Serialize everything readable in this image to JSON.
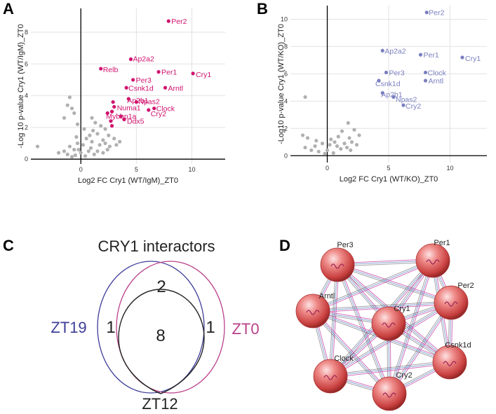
{
  "chart_data": [
    {
      "panel": "A",
      "type": "scatter",
      "xlabel": "Log2 FC Cry1 (WT/IgM)_ZT0",
      "ylabel": "-Log 10 p-value Cry1 (WT/IgM)_ZT0",
      "xlim": [
        -4.5,
        13
      ],
      "ylim": [
        -0.3,
        9.5
      ],
      "xticks": [
        0,
        5,
        10
      ],
      "yticks": [
        0,
        2,
        4,
        6,
        8
      ],
      "x_tick_labels": [
        "0",
        "5",
        "10"
      ],
      "y_tick_labels": [
        "0",
        "2",
        "4",
        "6",
        "8"
      ],
      "highlight_color": "#d0126e",
      "background_color": "#b0b0b0",
      "labeled_points": [
        {
          "label": "Per2",
          "x": 7.9,
          "y": 8.7
        },
        {
          "label": "Ap2a2",
          "x": 4.5,
          "y": 6.3
        },
        {
          "label": "Relb",
          "x": 1.8,
          "y": 5.7
        },
        {
          "label": "Per1",
          "x": 7.0,
          "y": 5.5
        },
        {
          "label": "Cry1",
          "x": 10.1,
          "y": 5.4
        },
        {
          "label": "Per3",
          "x": 4.7,
          "y": 5.0
        },
        {
          "label": "Csnk1d",
          "x": 4.1,
          "y": 4.5
        },
        {
          "label": "Arntl",
          "x": 7.6,
          "y": 4.5
        },
        {
          "label": "Ap2b1",
          "x": 4.3,
          "y": 3.8
        },
        {
          "label": "Npas2",
          "x": 5.0,
          "y": 3.6
        },
        {
          "label": "Clock",
          "x": 6.6,
          "y": 3.2
        },
        {
          "label": "Numa1",
          "x": 3.0,
          "y": 3.3
        },
        {
          "label": "Cry2",
          "x": 6.1,
          "y": 3.1
        },
        {
          "label": "Mybbp1a",
          "x": 2.4,
          "y": 2.9
        },
        {
          "label": "Ddx5",
          "x": 3.9,
          "y": 2.5
        }
      ],
      "unlabeled_highlight": [
        {
          "x": 2.9,
          "y": 3.6
        },
        {
          "x": 2.8,
          "y": 3.0
        },
        {
          "x": 2.7,
          "y": 2.4
        },
        {
          "x": 2.8,
          "y": 2.1
        },
        {
          "x": 3.6,
          "y": 2.7
        }
      ],
      "background_points": [
        {
          "x": -1.0,
          "y": 3.9
        },
        {
          "x": -1.2,
          "y": 3.4
        },
        {
          "x": -0.8,
          "y": 3.2
        },
        {
          "x": -1.5,
          "y": 2.6
        },
        {
          "x": -0.6,
          "y": 2.9
        },
        {
          "x": -0.3,
          "y": 2.2
        },
        {
          "x": 0.3,
          "y": 1.9
        },
        {
          "x": 1.0,
          "y": 2.6
        },
        {
          "x": 1.3,
          "y": 2.3
        },
        {
          "x": 1.8,
          "y": 2.1
        },
        {
          "x": 2.2,
          "y": 1.9
        },
        {
          "x": 1.5,
          "y": 1.6
        },
        {
          "x": 2.5,
          "y": 1.5
        },
        {
          "x": 2.0,
          "y": 1.2
        },
        {
          "x": 3.0,
          "y": 1.3
        },
        {
          "x": 3.2,
          "y": 0.9
        },
        {
          "x": 2.6,
          "y": 0.8
        },
        {
          "x": 1.0,
          "y": 1.1
        },
        {
          "x": 0.5,
          "y": 1.3
        },
        {
          "x": 0.9,
          "y": 0.7
        },
        {
          "x": 1.5,
          "y": 0.5
        },
        {
          "x": 0.2,
          "y": 0.9
        },
        {
          "x": -0.3,
          "y": 1.0
        },
        {
          "x": -0.6,
          "y": 0.6
        },
        {
          "x": -1.0,
          "y": 0.8
        },
        {
          "x": -1.5,
          "y": 0.5
        },
        {
          "x": -2.0,
          "y": 0.4
        },
        {
          "x": -1.2,
          "y": 0.3
        },
        {
          "x": -0.5,
          "y": 0.25
        },
        {
          "x": 0.0,
          "y": 0.4
        },
        {
          "x": 0.4,
          "y": 0.2
        },
        {
          "x": 1.2,
          "y": 0.3
        },
        {
          "x": 2.0,
          "y": 0.4
        },
        {
          "x": 2.4,
          "y": 0.6
        },
        {
          "x": -0.2,
          "y": 0.6
        },
        {
          "x": 0.7,
          "y": 0.5
        },
        {
          "x": -0.8,
          "y": 0.15
        },
        {
          "x": -3.9,
          "y": 0.8
        },
        {
          "x": 1.7,
          "y": 0.9
        },
        {
          "x": 2.2,
          "y": 1.0
        },
        {
          "x": 0.8,
          "y": 1.5
        },
        {
          "x": 3.5,
          "y": 1.1
        },
        {
          "x": 1.1,
          "y": 1.8
        },
        {
          "x": -0.4,
          "y": 1.4
        }
      ]
    },
    {
      "panel": "B",
      "type": "scatter",
      "xlabel": "Log2 FC Cry1 (WT/KO)_ZT0",
      "ylabel": "-Log10  p-value Cry1 (WT/KO)_ZT0",
      "xlim": [
        -3,
        13
      ],
      "ylim": [
        -0.5,
        11
      ],
      "xticks": [
        0,
        5,
        10
      ],
      "yticks": [
        0,
        2,
        4,
        6,
        8,
        10
      ],
      "x_tick_labels": [
        "0",
        "5",
        "10"
      ],
      "y_tick_labels": [
        "0",
        "2",
        "4",
        "6",
        "8",
        "10"
      ],
      "highlight_color": "#7a7fc0",
      "background_color": "#b0b0b0",
      "labeled_points": [
        {
          "label": "Per2",
          "x": 8.1,
          "y": 10.5
        },
        {
          "label": "Ap2a2",
          "x": 4.5,
          "y": 7.7
        },
        {
          "label": "Per1",
          "x": 7.6,
          "y": 7.4
        },
        {
          "label": "Cry1",
          "x": 11.0,
          "y": 7.2
        },
        {
          "label": "Per3",
          "x": 4.8,
          "y": 6.1
        },
        {
          "label": "Clock",
          "x": 8.0,
          "y": 6.1
        },
        {
          "label": "Csnk1d",
          "x": 4.2,
          "y": 5.5
        },
        {
          "label": "Arntl",
          "x": 8.0,
          "y": 5.5
        },
        {
          "label": "Ap2b1",
          "x": 4.5,
          "y": 4.6
        },
        {
          "label": "Npas2",
          "x": 5.4,
          "y": 4.3
        },
        {
          "label": "Cry2",
          "x": 6.2,
          "y": 3.7
        }
      ],
      "unlabeled_highlight": [],
      "background_points": [
        {
          "x": -1.8,
          "y": 4.3
        },
        {
          "x": 1.7,
          "y": 2.4
        },
        {
          "x": 2.2,
          "y": 1.9
        },
        {
          "x": 1.2,
          "y": 1.8
        },
        {
          "x": 2.6,
          "y": 1.5
        },
        {
          "x": 1.8,
          "y": 1.3
        },
        {
          "x": 0.9,
          "y": 1.4
        },
        {
          "x": 2.0,
          "y": 1.0
        },
        {
          "x": 1.4,
          "y": 0.9
        },
        {
          "x": 0.6,
          "y": 1.0
        },
        {
          "x": 0.2,
          "y": 0.8
        },
        {
          "x": -0.4,
          "y": 0.9
        },
        {
          "x": -1.0,
          "y": 0.7
        },
        {
          "x": -1.6,
          "y": 1.3
        },
        {
          "x": -2.0,
          "y": 1.5
        },
        {
          "x": -1.3,
          "y": 0.4
        },
        {
          "x": -0.7,
          "y": 0.3
        },
        {
          "x": 0.0,
          "y": 0.4
        },
        {
          "x": 0.5,
          "y": 0.2
        },
        {
          "x": 1.1,
          "y": 0.5
        },
        {
          "x": 1.6,
          "y": 0.6
        },
        {
          "x": -0.2,
          "y": 0.15
        },
        {
          "x": -1.8,
          "y": 0.6
        },
        {
          "x": 2.4,
          "y": 0.8
        },
        {
          "x": 0.8,
          "y": 0.7
        },
        {
          "x": -0.9,
          "y": 1.1
        },
        {
          "x": 1.9,
          "y": 0.4
        },
        {
          "x": 0.3,
          "y": 1.2
        }
      ]
    }
  ],
  "panels": {
    "a_letter": "A",
    "b_letter": "B",
    "c_letter": "C",
    "d_letter": "D"
  },
  "venn": {
    "title": "CRY1 interactors",
    "zt19_label": "ZT19",
    "zt0_label": "ZT0",
    "zt12_label": "ZT12",
    "zt19_only": "1",
    "zt0_only": "1",
    "zt19_zt0": "2",
    "all_three": "8",
    "zt19_color": "#3d3d99",
    "zt0_color": "#b9408a",
    "zt12_color": "#222222"
  },
  "network": {
    "nodes": [
      {
        "id": "Per3",
        "label": "Per3"
      },
      {
        "id": "Per1",
        "label": "Per1"
      },
      {
        "id": "Per2",
        "label": "Per2"
      },
      {
        "id": "Arntl",
        "label": "Arntl"
      },
      {
        "id": "Cry1",
        "label": "Cry1"
      },
      {
        "id": "Csnk1d",
        "label": "Csnk1d"
      },
      {
        "id": "Clock",
        "label": "Clock"
      },
      {
        "id": "Cry2",
        "label": "Cry2"
      }
    ],
    "node_color": "#e8605f",
    "edge_colors": [
      "#c94ba5",
      "#6d8fc9",
      "#333333"
    ]
  }
}
